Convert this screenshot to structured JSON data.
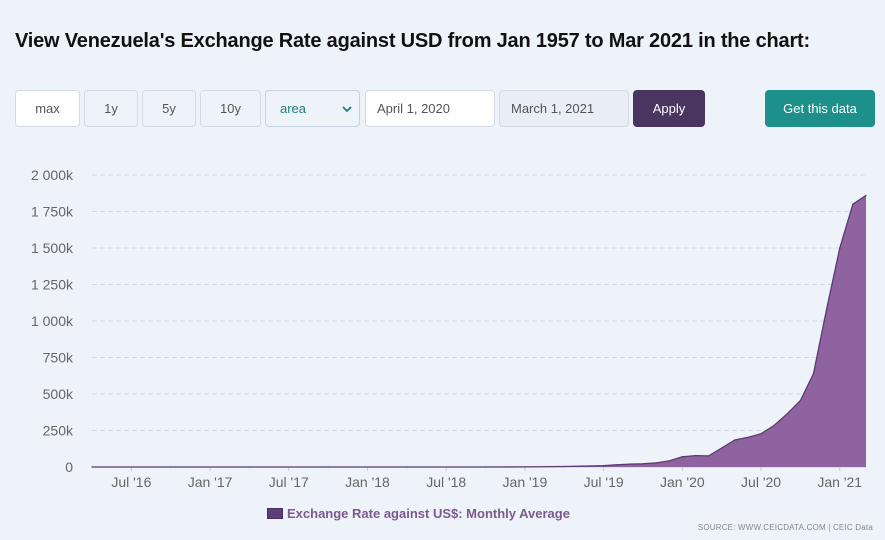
{
  "title": "View Venezuela's Exchange Rate against USD from Jan 1957 to Mar 2021 in the chart:",
  "toolbar": {
    "max_label": "max",
    "y1_label": "1y",
    "y5_label": "5y",
    "y10_label": "10y",
    "chart_type_value": "area",
    "start_date": "April 1, 2020",
    "end_date": "March 1, 2021",
    "apply_label": "Apply",
    "get_data_label": "Get this data"
  },
  "colors": {
    "area_fill": "#8e63a0",
    "area_stroke": "#5b3a72",
    "apply_bg": "#4a3560",
    "get_data_bg": "#1e908b",
    "select_text": "#1f7f7b"
  },
  "source": "SOURCE: WWW.CEICDATA.COM | CEIC Data",
  "chart_data": {
    "type": "area",
    "title": "",
    "xlabel": "",
    "ylabel": "",
    "ylim": [
      0,
      2000000
    ],
    "y_ticks": [
      0,
      250000,
      500000,
      750000,
      1000000,
      1250000,
      1500000,
      1750000,
      2000000
    ],
    "y_tick_labels": [
      "0",
      "250k",
      "500k",
      "750k",
      "1 000k",
      "1 250k",
      "1 500k",
      "1 750k",
      "2 000k"
    ],
    "x_range": [
      "2016-04",
      "2021-03"
    ],
    "x_ticks": [
      "2016-07",
      "2017-01",
      "2017-07",
      "2018-01",
      "2018-07",
      "2019-01",
      "2019-07",
      "2020-01",
      "2020-07",
      "2021-01"
    ],
    "x_tick_labels": [
      "Jul '16",
      "Jan '17",
      "Jul '17",
      "Jan '18",
      "Jul '18",
      "Jan '19",
      "Jul '19",
      "Jan '20",
      "Jul '20",
      "Jan '21"
    ],
    "grid": true,
    "legend_position": "bottom-center",
    "series": [
      {
        "name": "Exchange Rate against US$: Monthly Average",
        "x": [
          "2016-04",
          "2016-10",
          "2017-04",
          "2017-10",
          "2018-04",
          "2018-10",
          "2019-01",
          "2019-04",
          "2019-07",
          "2019-08",
          "2019-09",
          "2019-10",
          "2019-11",
          "2019-12",
          "2020-01",
          "2020-02",
          "2020-03",
          "2020-04",
          "2020-05",
          "2020-06",
          "2020-07",
          "2020-08",
          "2020-09",
          "2020-10",
          "2020-11",
          "2020-12",
          "2021-01",
          "2021-02",
          "2021-03"
        ],
        "values": [
          0,
          0,
          0,
          0,
          0,
          150,
          1000,
          3500,
          9000,
          15000,
          20000,
          22000,
          28000,
          42000,
          70000,
          78000,
          76000,
          130000,
          185000,
          203000,
          228000,
          285000,
          365000,
          455000,
          640000,
          1080000,
          1500000,
          1800000,
          1860000
        ]
      }
    ]
  }
}
